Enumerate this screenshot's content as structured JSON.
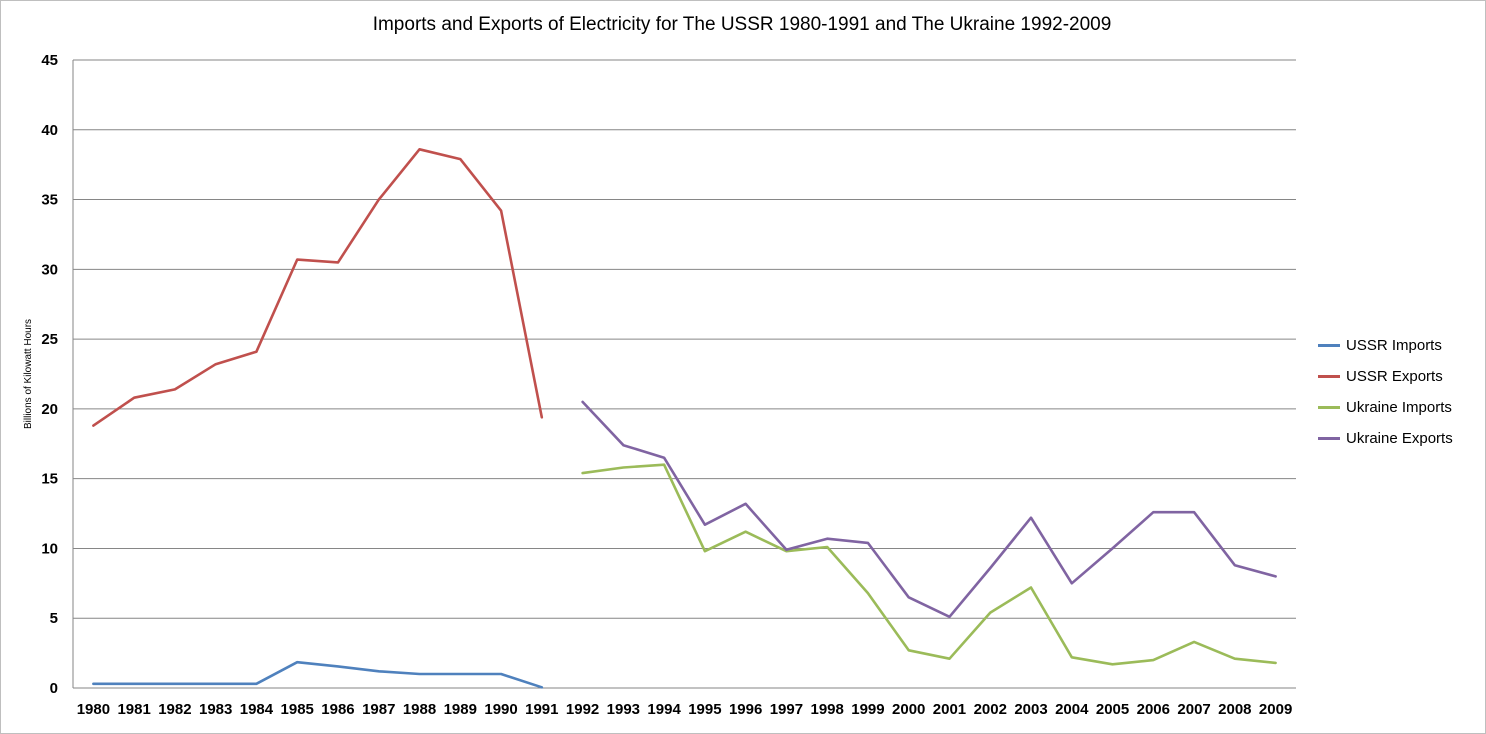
{
  "chart_data": {
    "type": "line",
    "title": "Imports and Exports of Electricity for The USSR 1980-1991 and The Ukraine 1992-2009",
    "ylabel": "Billions of Kilowatt Hours",
    "xlabel": "",
    "ylim": [
      0,
      45
    ],
    "yticks": [
      0,
      5,
      10,
      15,
      20,
      25,
      30,
      35,
      40,
      45
    ],
    "grid": true,
    "legend_position": "right",
    "categories": [
      "1980",
      "1981",
      "1982",
      "1983",
      "1984",
      "1985",
      "1986",
      "1987",
      "1988",
      "1989",
      "1990",
      "1991",
      "1992",
      "1993",
      "1994",
      "1995",
      "1996",
      "1997",
      "1998",
      "1999",
      "2000",
      "2001",
      "2002",
      "2003",
      "2004",
      "2005",
      "2006",
      "2007",
      "2008",
      "2009"
    ],
    "series": [
      {
        "name": "USSR Imports",
        "color": "#4f81bd",
        "values": [
          0.3,
          0.3,
          0.3,
          0.3,
          0.3,
          1.85,
          1.55,
          1.2,
          1.0,
          1.0,
          1.0,
          0.05,
          null,
          null,
          null,
          null,
          null,
          null,
          null,
          null,
          null,
          null,
          null,
          null,
          null,
          null,
          null,
          null,
          null,
          null
        ]
      },
      {
        "name": "USSR Exports",
        "color": "#c0504d",
        "values": [
          18.8,
          20.8,
          21.4,
          23.2,
          24.1,
          30.7,
          30.5,
          35.0,
          38.6,
          37.9,
          34.2,
          19.4,
          null,
          null,
          null,
          null,
          null,
          null,
          null,
          null,
          null,
          null,
          null,
          null,
          null,
          null,
          null,
          null,
          null,
          null
        ]
      },
      {
        "name": "Ukraine Imports",
        "color": "#9bbb59",
        "values": [
          null,
          null,
          null,
          null,
          null,
          null,
          null,
          null,
          null,
          null,
          null,
          null,
          15.4,
          15.8,
          16.0,
          9.8,
          11.2,
          9.8,
          10.1,
          6.8,
          2.7,
          2.1,
          5.4,
          7.2,
          2.2,
          1.7,
          2.0,
          3.3,
          2.1,
          1.8
        ]
      },
      {
        "name": "Ukraine Exports",
        "color": "#8064a2",
        "values": [
          null,
          null,
          null,
          null,
          null,
          null,
          null,
          null,
          null,
          null,
          null,
          null,
          20.5,
          17.4,
          16.5,
          11.7,
          13.2,
          9.9,
          10.7,
          10.4,
          6.5,
          5.1,
          8.6,
          12.2,
          7.5,
          10.0,
          12.6,
          12.6,
          8.8,
          8.0
        ]
      }
    ]
  }
}
